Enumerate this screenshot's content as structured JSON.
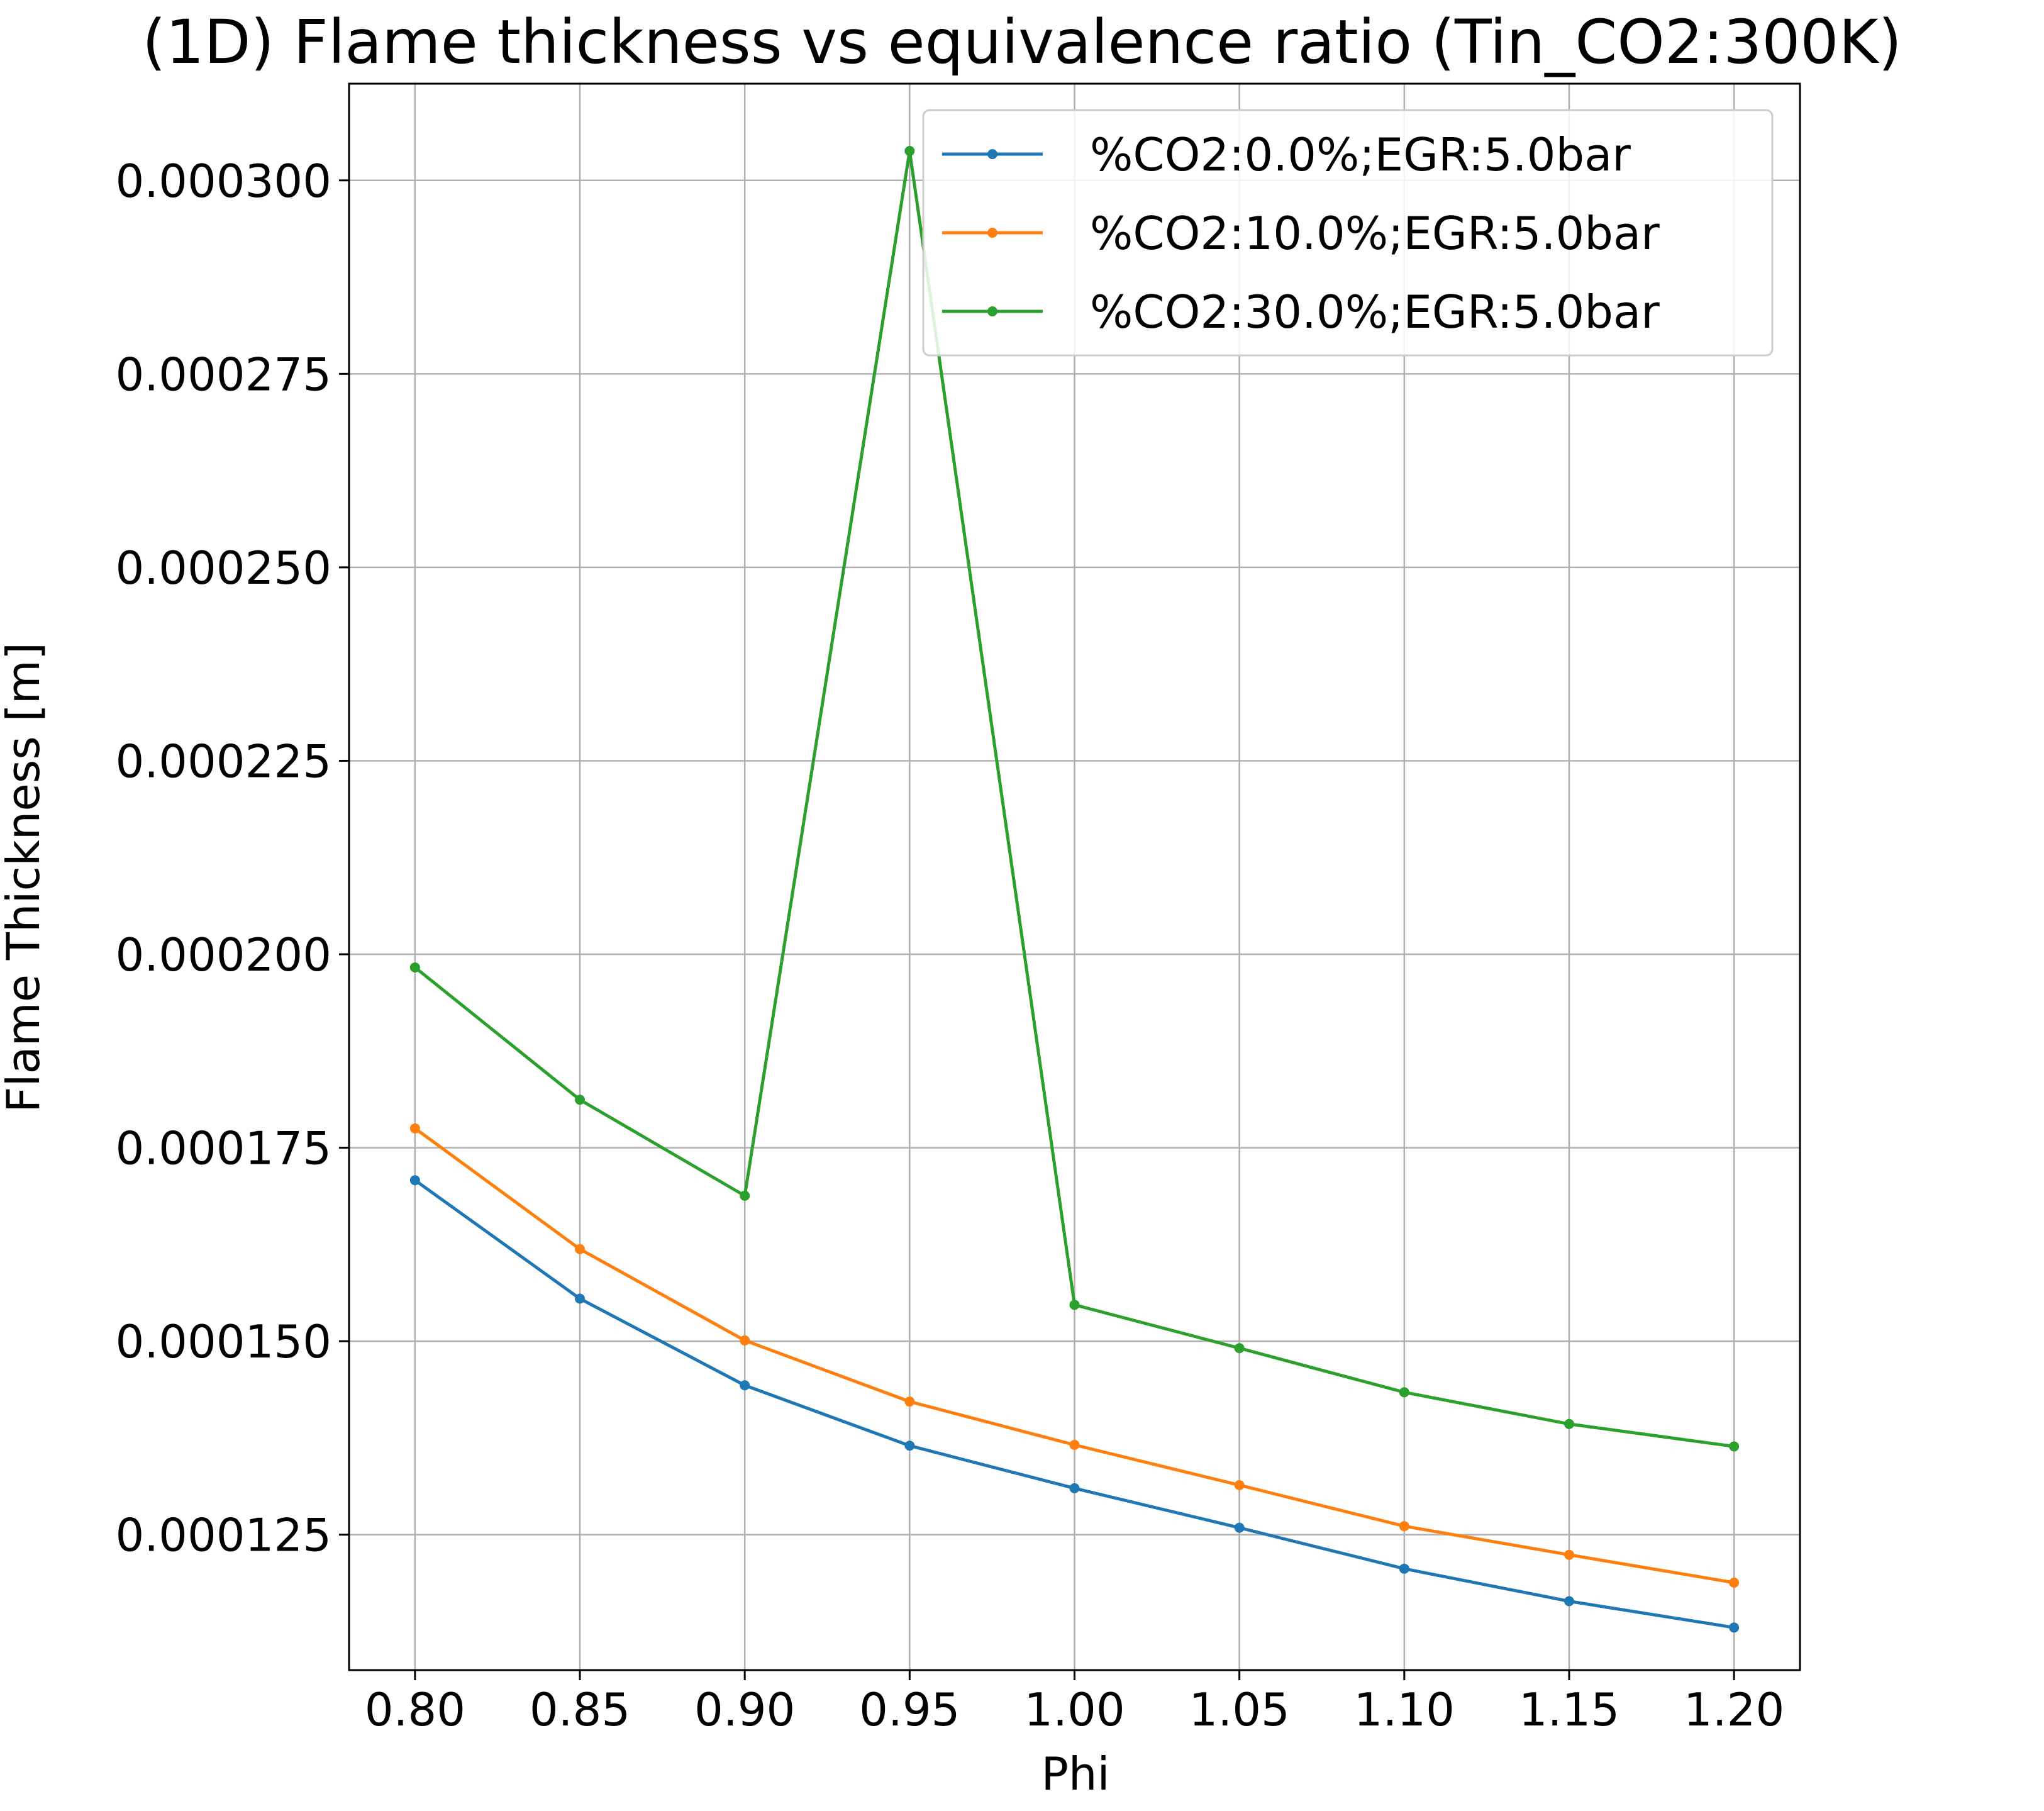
{
  "chart_data": {
    "type": "line",
    "title": "(1D) Flame thickness vs equivalence ratio (Tin_CO2:300K)",
    "xlabel": "Phi",
    "ylabel": "Flame Thickness [m]",
    "x": [
      0.8,
      0.85,
      0.9,
      0.95,
      1.0,
      1.05,
      1.1,
      1.15,
      1.2
    ],
    "xticks": [
      "0.80",
      "0.85",
      "0.90",
      "0.95",
      "1.00",
      "1.05",
      "1.10",
      "1.15",
      "1.20"
    ],
    "yticks": [
      "0.000125",
      "0.000150",
      "0.000175",
      "0.000200",
      "0.000225",
      "0.000250",
      "0.000275",
      "0.000300"
    ],
    "xlim": [
      0.78,
      1.22
    ],
    "ylim": [
      0.0001075,
      0.0003125
    ],
    "grid": true,
    "legend_position": "top-right",
    "series": [
      {
        "name": "%CO2:0.0%;EGR:5.0bar",
        "color": "#1f77b4",
        "values": [
          0.0001708,
          0.0001555,
          0.0001443,
          0.0001365,
          0.000131,
          0.0001259,
          0.0001206,
          0.0001164,
          0.000113
        ]
      },
      {
        "name": "%CO2:10.0%;EGR:5.0bar",
        "color": "#ff7f0e",
        "values": [
          0.0001775,
          0.0001619,
          0.0001501,
          0.0001422,
          0.0001366,
          0.0001314,
          0.0001261,
          0.0001224,
          0.0001188
        ]
      },
      {
        "name": "%CO2:30.0%;EGR:5.0bar",
        "color": "#2ca02c",
        "values": [
          0.0001983,
          0.0001812,
          0.0001688,
          0.0003038,
          0.0001547,
          0.0001491,
          0.0001434,
          0.0001393,
          0.0001364
        ]
      }
    ]
  }
}
